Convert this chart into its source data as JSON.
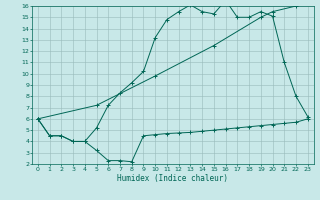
{
  "xlabel": "Humidex (Indice chaleur)",
  "bg_color": "#c8e8e8",
  "grid_color": "#99bbbb",
  "line_color": "#006655",
  "xlim": [
    -0.5,
    23.5
  ],
  "ylim": [
    2,
    16
  ],
  "xticks": [
    0,
    1,
    2,
    3,
    4,
    5,
    6,
    7,
    8,
    9,
    10,
    11,
    12,
    13,
    14,
    15,
    16,
    17,
    18,
    19,
    20,
    21,
    22,
    23
  ],
  "yticks": [
    2,
    3,
    4,
    5,
    6,
    7,
    8,
    9,
    10,
    11,
    12,
    13,
    14,
    15,
    16
  ],
  "line1_x": [
    0,
    1,
    2,
    3,
    4,
    5,
    6,
    7,
    8,
    9,
    10,
    11,
    12,
    13,
    14,
    15,
    16,
    17,
    18,
    19,
    20,
    21,
    22,
    23
  ],
  "line1_y": [
    6.0,
    4.5,
    4.5,
    4.0,
    4.0,
    3.2,
    2.3,
    2.3,
    2.2,
    4.5,
    4.6,
    4.7,
    4.75,
    4.8,
    4.9,
    5.0,
    5.1,
    5.2,
    5.3,
    5.4,
    5.5,
    5.6,
    5.7,
    6.0
  ],
  "line2_x": [
    0,
    1,
    2,
    3,
    4,
    5,
    6,
    7,
    8,
    9,
    10,
    11,
    12,
    13,
    14,
    15,
    16,
    17,
    18,
    19,
    20,
    21,
    22,
    23
  ],
  "line2_y": [
    6.0,
    4.5,
    4.5,
    4.0,
    4.0,
    5.2,
    7.2,
    8.3,
    9.2,
    10.2,
    13.2,
    14.8,
    15.5,
    16.1,
    15.5,
    15.3,
    16.5,
    15.0,
    15.0,
    15.5,
    15.1,
    11.0,
    8.0,
    6.2
  ],
  "line3_x": [
    0,
    5,
    10,
    15,
    19,
    20,
    22
  ],
  "line3_y": [
    6.0,
    7.2,
    9.8,
    12.5,
    15.0,
    15.5,
    16.0
  ]
}
